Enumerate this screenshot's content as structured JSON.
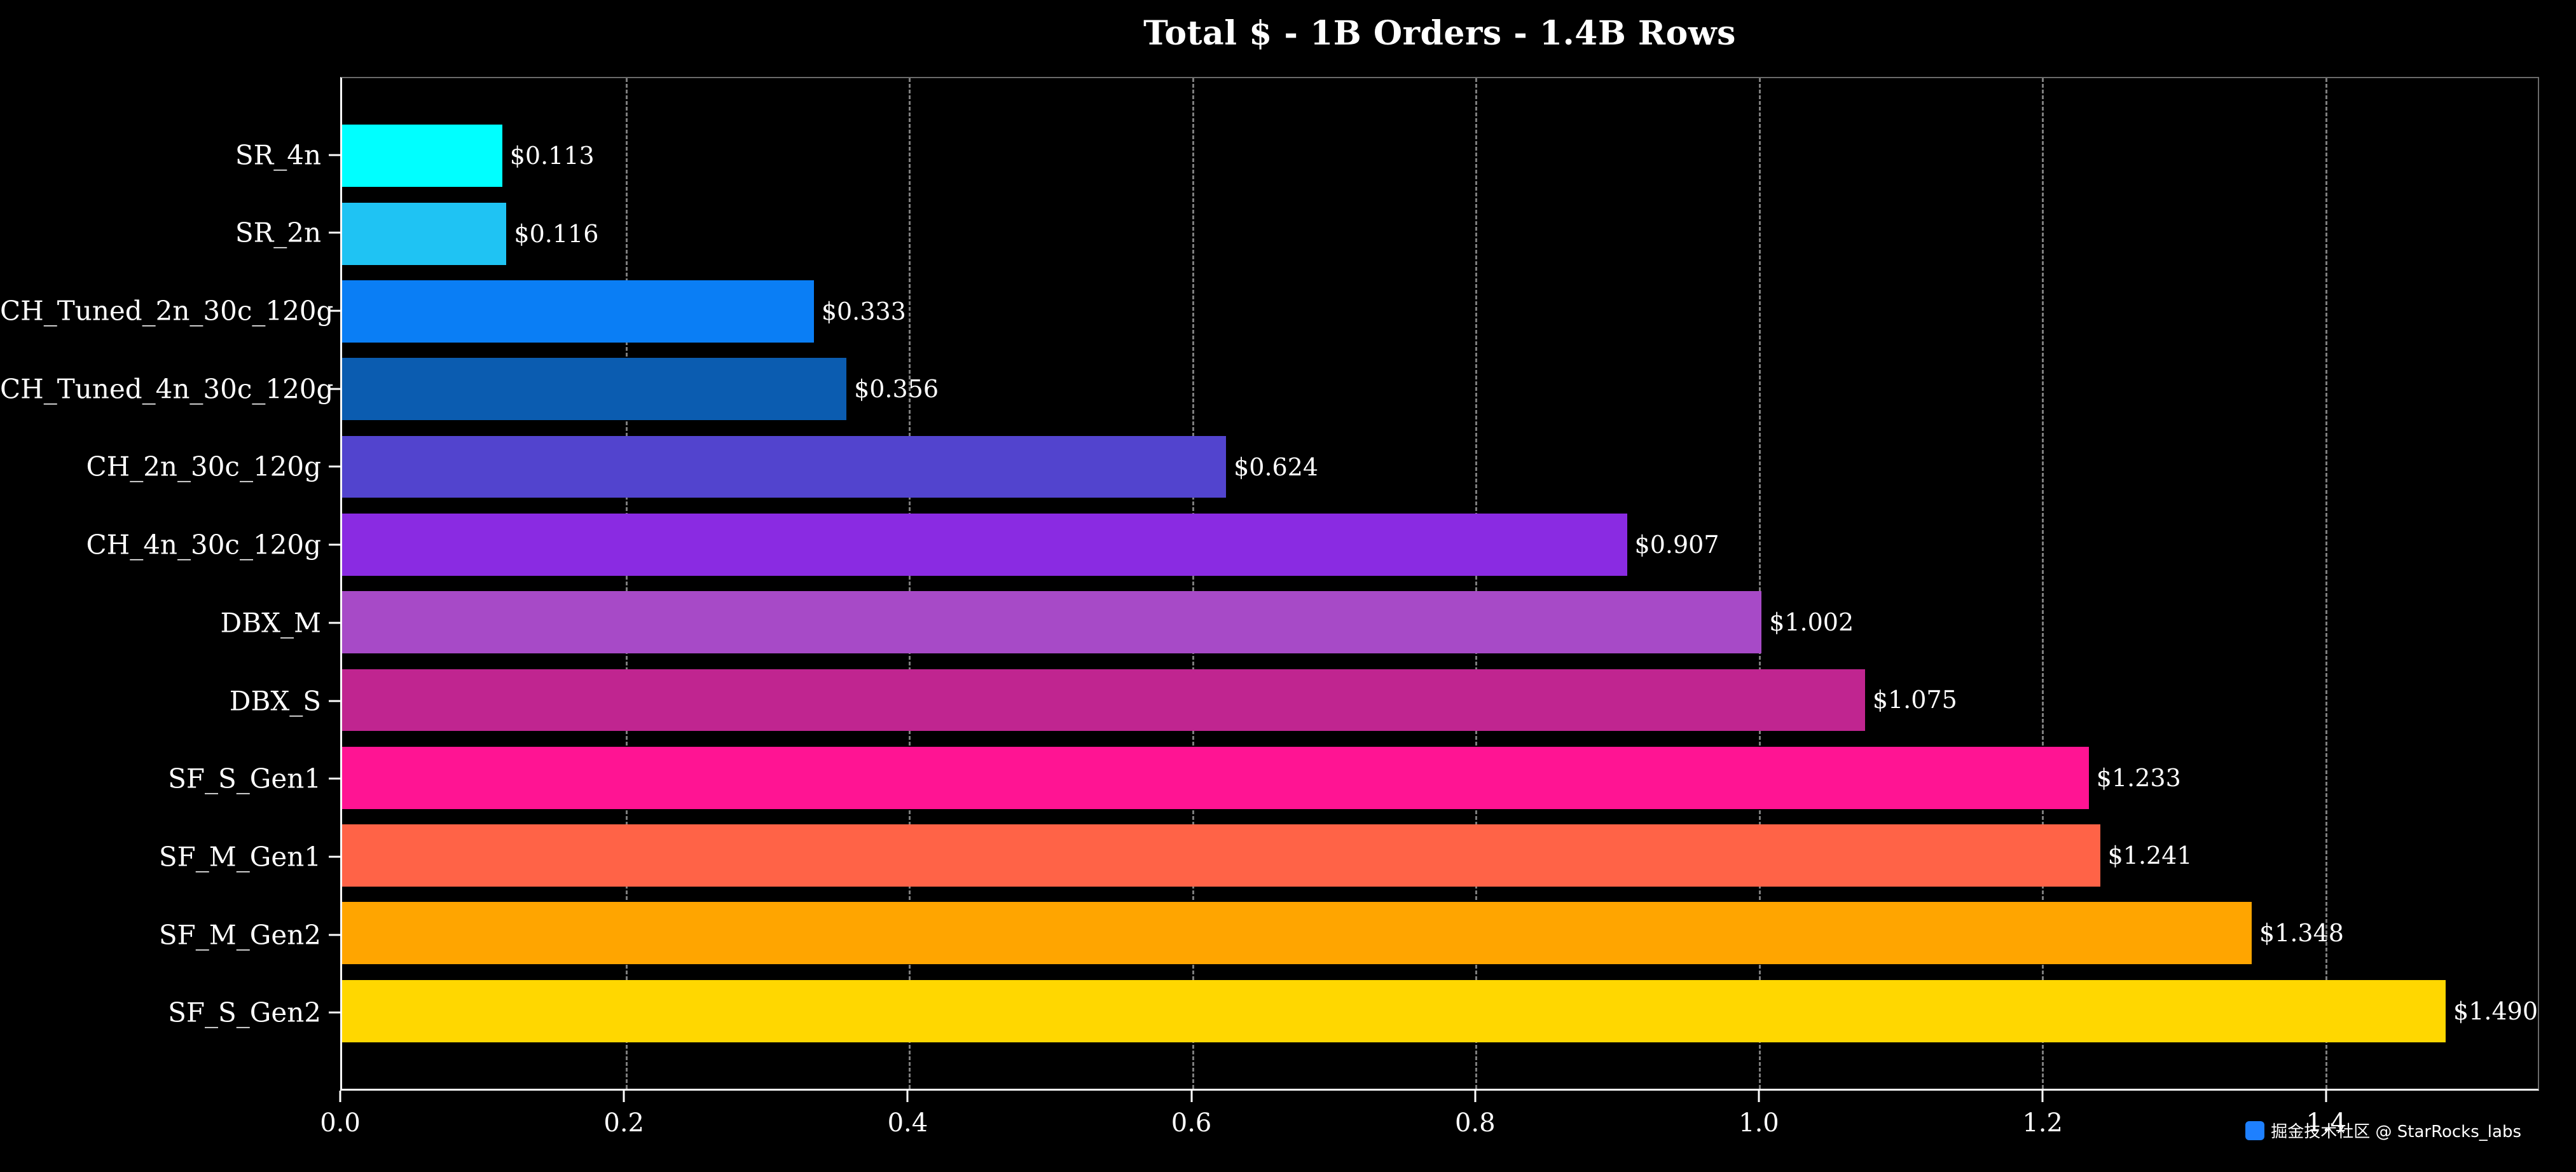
{
  "title": "Total $ - 1B Orders - 1.4B Rows",
  "watermark": {
    "text": "掘金技术社区 @ StarRocks_labs",
    "badge_color": "#1e80ff"
  },
  "chart_data": {
    "type": "bar",
    "orientation": "horizontal",
    "title": "Total $ - 1B Orders - 1.4B Rows",
    "categories": [
      "SR_4n",
      "SR_2n",
      "CH_Tuned_2n_30c_120g",
      "CH_Tuned_4n_30c_120g",
      "CH_2n_30c_120g",
      "CH_4n_30c_120g",
      "DBX_M",
      "DBX_S",
      "SF_S_Gen1",
      "SF_M_Gen1",
      "SF_M_Gen2",
      "SF_S_Gen2"
    ],
    "values": [
      0.113,
      0.116,
      0.333,
      0.356,
      0.624,
      0.907,
      1.002,
      1.075,
      1.233,
      1.241,
      1.348,
      1.49
    ],
    "value_labels": [
      "$0.113",
      "$0.116",
      "$0.333",
      "$0.356",
      "$0.624",
      "$0.907",
      "$1.002",
      "$1.075",
      "$1.233",
      "$1.241",
      "$1.348",
      "$1.490"
    ],
    "bar_colors": [
      "#00ffff",
      "#1fc3f3",
      "#0a7ef5",
      "#0b5cb0",
      "#5244ce",
      "#8a2be2",
      "#a74ac7",
      "#c02590",
      "#ff1493",
      "#ff6347",
      "#ffa500",
      "#ffd700"
    ],
    "xlabel": "",
    "ylabel": "",
    "xlim": [
      0,
      1.55
    ],
    "xticks": [
      0.0,
      0.2,
      0.4,
      0.6,
      0.8,
      1.0,
      1.2,
      1.4
    ],
    "xtick_labels": [
      "0.0",
      "0.2",
      "0.4",
      "0.6",
      "0.8",
      "1.0",
      "1.2",
      "1.4"
    ],
    "grid": {
      "axis": "x",
      "style": "dashed",
      "color": "#7d7d7d"
    },
    "legend": null,
    "background_color": "#000000",
    "text_color": "#ffffff"
  }
}
